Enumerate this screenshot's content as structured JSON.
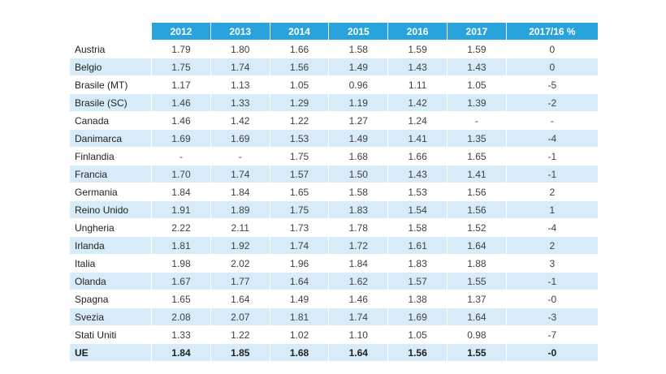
{
  "colors": {
    "header_bg": "#29a3dc",
    "header_text": "#ffffff",
    "alt_row_bg": "#d7ecf8",
    "plain_row_bg": "#ffffff",
    "body_text": "#404040"
  },
  "chart_data": {
    "type": "table",
    "columns": [
      "",
      "2012",
      "2013",
      "2014",
      "2015",
      "2016",
      "2017",
      "2017/16 %"
    ],
    "rows": [
      {
        "name": "Austria",
        "values": [
          "1.79",
          "1.80",
          "1.66",
          "1.58",
          "1.59",
          "1.59",
          "0"
        ],
        "bold": false
      },
      {
        "name": "Belgio",
        "values": [
          "1.75",
          "1.74",
          "1.56",
          "1.49",
          "1.43",
          "1.43",
          "0"
        ],
        "bold": false
      },
      {
        "name": "Brasile (MT)",
        "values": [
          "1.17",
          "1.13",
          "1.05",
          "0.96",
          "1.11",
          "1.05",
          "-5"
        ],
        "bold": false
      },
      {
        "name": "Brasile (SC)",
        "values": [
          "1.46",
          "1.33",
          "1.29",
          "1.19",
          "1.42",
          "1.39",
          "-2"
        ],
        "bold": false
      },
      {
        "name": "Canada",
        "values": [
          "1.46",
          "1.42",
          "1.22",
          "1.27",
          "1.24",
          "-",
          "-"
        ],
        "bold": false
      },
      {
        "name": "Danimarca",
        "values": [
          "1.69",
          "1.69",
          "1.53",
          "1.49",
          "1.41",
          "1.35",
          "-4"
        ],
        "bold": false
      },
      {
        "name": "Finlandia",
        "values": [
          "-",
          "-",
          "1.75",
          "1.68",
          "1.66",
          "1.65",
          "-1"
        ],
        "bold": false
      },
      {
        "name": "Francia",
        "values": [
          "1.70",
          "1.74",
          "1.57",
          "1.50",
          "1.43",
          "1.41",
          "-1"
        ],
        "bold": false
      },
      {
        "name": "Germania",
        "values": [
          "1.84",
          "1.84",
          "1.65",
          "1.58",
          "1.53",
          "1.56",
          "2"
        ],
        "bold": false
      },
      {
        "name": "Reino Unido",
        "values": [
          "1.91",
          "1.89",
          "1.75",
          "1.83",
          "1.54",
          "1.56",
          "1"
        ],
        "bold": false
      },
      {
        "name": "Ungheria",
        "values": [
          "2.22",
          "2.11",
          "1.73",
          "1.78",
          "1.58",
          "1.52",
          "-4"
        ],
        "bold": false
      },
      {
        "name": "Irlanda",
        "values": [
          "1.81",
          "1.92",
          "1.74",
          "1.72",
          "1.61",
          "1.64",
          "2"
        ],
        "bold": false
      },
      {
        "name": "Italia",
        "values": [
          "1.98",
          "2.02",
          "1.96",
          "1.84",
          "1.83",
          "1.88",
          "3"
        ],
        "bold": false
      },
      {
        "name": "Olanda",
        "values": [
          "1.67",
          "1.77",
          "1.64",
          "1.62",
          "1.57",
          "1.55",
          "-1"
        ],
        "bold": false
      },
      {
        "name": "Spagna",
        "values": [
          "1.65",
          "1.64",
          "1.49",
          "1.46",
          "1.38",
          "1.37",
          "-0"
        ],
        "bold": false
      },
      {
        "name": "Svezia",
        "values": [
          "2.08",
          "2.07",
          "1.81",
          "1.74",
          "1.69",
          "1.64",
          "-3"
        ],
        "bold": false
      },
      {
        "name": "Stati Uniti",
        "values": [
          "1.33",
          "1.22",
          "1.02",
          "1.10",
          "1.05",
          "0.98",
          "-7"
        ],
        "bold": false
      },
      {
        "name": "UE",
        "values": [
          "1.84",
          "1.85",
          "1.68",
          "1.64",
          "1.56",
          "1.55",
          "-0"
        ],
        "bold": true
      }
    ]
  }
}
